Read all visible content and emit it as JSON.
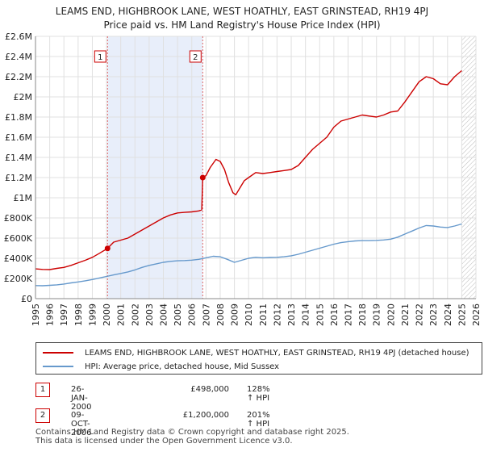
{
  "title_line1": "LEAMS END, HIGHBROOK LANE, WEST HOATHLY, EAST GRINSTEAD, RH19 4PJ",
  "title_line2": "Price paid vs. HM Land Registry's House Price Index (HPI)",
  "colors": {
    "property": "#cc0000",
    "hpi": "#6699cc",
    "shade": "#e8eefa",
    "grid": "#e0e0e0",
    "marker_border": "#cc0000"
  },
  "chart_data": {
    "type": "line",
    "xlim": [
      1995,
      2026
    ],
    "ylim": [
      0,
      2600000
    ],
    "x_ticks": [
      1995,
      1996,
      1997,
      1998,
      1999,
      2000,
      2001,
      2002,
      2003,
      2004,
      2005,
      2006,
      2007,
      2008,
      2009,
      2010,
      2011,
      2012,
      2013,
      2014,
      2015,
      2016,
      2017,
      2018,
      2019,
      2020,
      2021,
      2022,
      2023,
      2024,
      2025,
      2026
    ],
    "y_ticks": [
      {
        "value": 0,
        "label": "£0"
      },
      {
        "value": 200000,
        "label": "£200K"
      },
      {
        "value": 400000,
        "label": "£400K"
      },
      {
        "value": 600000,
        "label": "£600K"
      },
      {
        "value": 800000,
        "label": "£800K"
      },
      {
        "value": 1000000,
        "label": "£1M"
      },
      {
        "value": 1200000,
        "label": "£1.2M"
      },
      {
        "value": 1400000,
        "label": "£1.4M"
      },
      {
        "value": 1600000,
        "label": "£1.6M"
      },
      {
        "value": 1800000,
        "label": "£1.8M"
      },
      {
        "value": 2000000,
        "label": "£2M"
      },
      {
        "value": 2200000,
        "label": "£2.2M"
      },
      {
        "value": 2400000,
        "label": "£2.4M"
      },
      {
        "value": 2600000,
        "label": "£2.6M"
      }
    ],
    "shaded_span": [
      2000.07,
      2006.77
    ],
    "hatched_from": 2025.0,
    "series": [
      {
        "name": "LEAMS END, HIGHBROOK LANE, WEST HOATHLY, EAST GRINSTEAD, RH19 4PJ (detached house)",
        "color": "#cc0000",
        "points": [
          [
            1995.0,
            295000
          ],
          [
            1995.5,
            290000
          ],
          [
            1996.0,
            288000
          ],
          [
            1996.5,
            300000
          ],
          [
            1997.0,
            310000
          ],
          [
            1997.5,
            330000
          ],
          [
            1998.0,
            355000
          ],
          [
            1998.5,
            380000
          ],
          [
            1999.0,
            410000
          ],
          [
            1999.5,
            450000
          ],
          [
            2000.07,
            498000
          ],
          [
            2000.5,
            560000
          ],
          [
            2001.0,
            580000
          ],
          [
            2001.5,
            600000
          ],
          [
            2002.0,
            640000
          ],
          [
            2002.5,
            680000
          ],
          [
            2003.0,
            720000
          ],
          [
            2003.5,
            760000
          ],
          [
            2004.0,
            800000
          ],
          [
            2004.5,
            830000
          ],
          [
            2005.0,
            850000
          ],
          [
            2005.5,
            855000
          ],
          [
            2006.0,
            860000
          ],
          [
            2006.5,
            870000
          ],
          [
            2006.7,
            880000
          ],
          [
            2006.77,
            1200000
          ],
          [
            2007.0,
            1220000
          ],
          [
            2007.3,
            1300000
          ],
          [
            2007.7,
            1380000
          ],
          [
            2008.0,
            1360000
          ],
          [
            2008.3,
            1280000
          ],
          [
            2008.6,
            1150000
          ],
          [
            2008.9,
            1050000
          ],
          [
            2009.1,
            1030000
          ],
          [
            2009.4,
            1100000
          ],
          [
            2009.7,
            1170000
          ],
          [
            2010.0,
            1200000
          ],
          [
            2010.5,
            1250000
          ],
          [
            2011.0,
            1240000
          ],
          [
            2011.5,
            1250000
          ],
          [
            2012.0,
            1260000
          ],
          [
            2012.5,
            1270000
          ],
          [
            2013.0,
            1280000
          ],
          [
            2013.5,
            1320000
          ],
          [
            2014.0,
            1400000
          ],
          [
            2014.5,
            1480000
          ],
          [
            2015.0,
            1540000
          ],
          [
            2015.5,
            1600000
          ],
          [
            2016.0,
            1700000
          ],
          [
            2016.5,
            1760000
          ],
          [
            2017.0,
            1780000
          ],
          [
            2017.5,
            1800000
          ],
          [
            2018.0,
            1820000
          ],
          [
            2018.5,
            1810000
          ],
          [
            2019.0,
            1800000
          ],
          [
            2019.5,
            1820000
          ],
          [
            2020.0,
            1850000
          ],
          [
            2020.5,
            1860000
          ],
          [
            2021.0,
            1950000
          ],
          [
            2021.5,
            2050000
          ],
          [
            2022.0,
            2150000
          ],
          [
            2022.5,
            2200000
          ],
          [
            2023.0,
            2180000
          ],
          [
            2023.5,
            2130000
          ],
          [
            2024.0,
            2120000
          ],
          [
            2024.5,
            2200000
          ],
          [
            2025.0,
            2260000
          ]
        ]
      },
      {
        "name": "HPI: Average price, detached house, Mid Sussex",
        "color": "#6699cc",
        "points": [
          [
            1995.0,
            130000
          ],
          [
            1995.5,
            128000
          ],
          [
            1996.0,
            132000
          ],
          [
            1996.5,
            137000
          ],
          [
            1997.0,
            145000
          ],
          [
            1997.5,
            156000
          ],
          [
            1998.0,
            166000
          ],
          [
            1998.5,
            177000
          ],
          [
            1999.0,
            190000
          ],
          [
            1999.5,
            205000
          ],
          [
            2000.0,
            220000
          ],
          [
            2000.5,
            235000
          ],
          [
            2001.0,
            250000
          ],
          [
            2001.5,
            265000
          ],
          [
            2002.0,
            285000
          ],
          [
            2002.5,
            310000
          ],
          [
            2003.0,
            330000
          ],
          [
            2003.5,
            345000
          ],
          [
            2004.0,
            360000
          ],
          [
            2004.5,
            370000
          ],
          [
            2005.0,
            375000
          ],
          [
            2005.5,
            378000
          ],
          [
            2006.0,
            382000
          ],
          [
            2006.5,
            390000
          ],
          [
            2007.0,
            405000
          ],
          [
            2007.5,
            420000
          ],
          [
            2008.0,
            415000
          ],
          [
            2008.5,
            390000
          ],
          [
            2009.0,
            360000
          ],
          [
            2009.5,
            380000
          ],
          [
            2010.0,
            400000
          ],
          [
            2010.5,
            410000
          ],
          [
            2011.0,
            405000
          ],
          [
            2011.5,
            408000
          ],
          [
            2012.0,
            410000
          ],
          [
            2012.5,
            415000
          ],
          [
            2013.0,
            425000
          ],
          [
            2013.5,
            440000
          ],
          [
            2014.0,
            460000
          ],
          [
            2014.5,
            480000
          ],
          [
            2015.0,
            500000
          ],
          [
            2015.5,
            520000
          ],
          [
            2016.0,
            540000
          ],
          [
            2016.5,
            555000
          ],
          [
            2017.0,
            565000
          ],
          [
            2017.5,
            572000
          ],
          [
            2018.0,
            575000
          ],
          [
            2018.5,
            575000
          ],
          [
            2019.0,
            578000
          ],
          [
            2019.5,
            582000
          ],
          [
            2020.0,
            590000
          ],
          [
            2020.5,
            610000
          ],
          [
            2021.0,
            640000
          ],
          [
            2021.5,
            670000
          ],
          [
            2022.0,
            700000
          ],
          [
            2022.5,
            725000
          ],
          [
            2023.0,
            720000
          ],
          [
            2023.5,
            710000
          ],
          [
            2024.0,
            705000
          ],
          [
            2024.5,
            720000
          ],
          [
            2025.0,
            740000
          ]
        ]
      }
    ],
    "sales": [
      {
        "label": "1",
        "x": 2000.07,
        "y": 498000,
        "date": "26-JAN-2000",
        "price": "£498,000",
        "hpi_change": "128% ↑ HPI"
      },
      {
        "label": "2",
        "x": 2006.77,
        "y": 1200000,
        "date": "09-OCT-2006",
        "price": "£1,200,000",
        "hpi_change": "201% ↑ HPI"
      }
    ]
  },
  "footer_line1": "Contains HM Land Registry data © Crown copyright and database right 2025.",
  "footer_line2": "This data is licensed under the Open Government Licence v3.0."
}
